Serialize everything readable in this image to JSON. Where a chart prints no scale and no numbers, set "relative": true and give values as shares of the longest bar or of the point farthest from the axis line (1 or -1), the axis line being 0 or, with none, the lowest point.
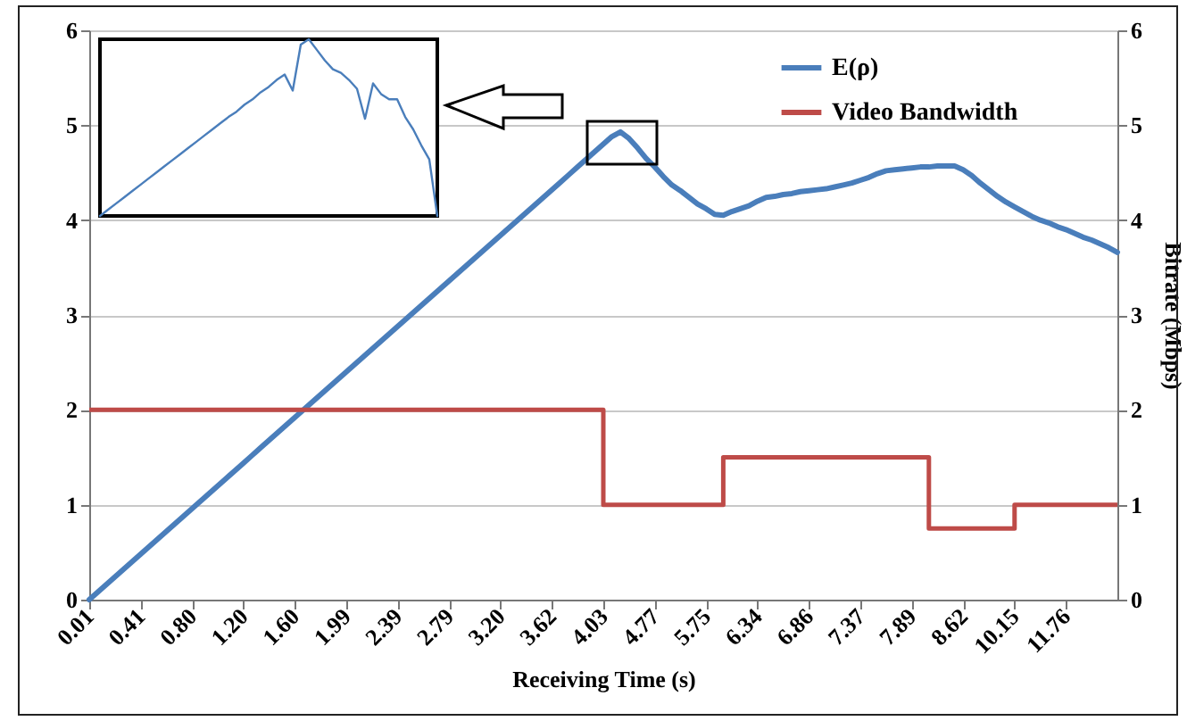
{
  "chart_data": [
    {
      "type": "line",
      "xlabel": "Receiving Time (s)",
      "y2label": "Bitrate (Mbps)",
      "categories": [
        "0.01",
        null,
        null,
        null,
        null,
        null,
        "0.41",
        null,
        null,
        null,
        null,
        null,
        "0.80",
        null,
        null,
        null,
        null,
        null,
        "1.20",
        null,
        null,
        null,
        null,
        null,
        "1.60",
        null,
        null,
        null,
        null,
        null,
        "1.99",
        null,
        null,
        null,
        null,
        null,
        "2.39",
        null,
        null,
        null,
        null,
        null,
        "2.79",
        null,
        null,
        null,
        null,
        null,
        "3.20",
        null,
        null,
        null,
        null,
        null,
        "3.62",
        null,
        null,
        null,
        null,
        null,
        "4.03",
        null,
        null,
        null,
        null,
        null,
        "4.77",
        null,
        null,
        null,
        null,
        null,
        "5.75",
        null,
        null,
        null,
        null,
        null,
        "6.34",
        null,
        null,
        null,
        null,
        null,
        "6.86",
        null,
        null,
        null,
        null,
        null,
        "7.37",
        null,
        null,
        null,
        null,
        null,
        "7.89",
        null,
        null,
        null,
        null,
        null,
        "8.62",
        null,
        null,
        null,
        null,
        null,
        "10.15",
        null,
        null,
        null,
        null,
        null,
        "11.76",
        null,
        null,
        null,
        null,
        null,
        null
      ],
      "series": [
        {
          "name": "E(ρ)",
          "color": "#4a7ebb",
          "values": [
            0,
            0.08,
            0.16,
            0.24,
            0.32,
            0.4,
            0.48,
            0.56,
            0.64,
            0.72,
            0.8,
            0.88,
            0.96,
            1.04,
            1.12,
            1.2,
            1.28,
            1.36,
            1.44,
            1.52,
            1.6,
            1.68,
            1.76,
            1.84,
            1.92,
            2,
            2.08,
            2.16,
            2.24,
            2.32,
            2.4,
            2.48,
            2.56,
            2.64,
            2.72,
            2.8,
            2.88,
            2.96,
            3.04,
            3.12,
            3.2,
            3.28,
            3.36,
            3.44,
            3.52,
            3.6,
            3.68,
            3.76,
            3.84,
            3.92,
            4,
            4.08,
            4.16,
            4.24,
            4.32,
            4.4,
            4.48,
            4.56,
            4.64,
            4.72,
            4.8,
            4.88,
            4.93,
            4.86,
            4.76,
            4.65,
            4.56,
            4.46,
            4.37,
            4.31,
            4.24,
            4.17,
            4.12,
            4.06,
            4.05,
            4.09,
            4.12,
            4.15,
            4.2,
            4.24,
            4.25,
            4.27,
            4.28,
            4.3,
            4.31,
            4.32,
            4.33,
            4.35,
            4.37,
            4.39,
            4.42,
            4.45,
            4.49,
            4.52,
            4.53,
            4.54,
            4.55,
            4.56,
            4.56,
            4.57,
            4.57,
            4.57,
            4.53,
            4.47,
            4.39,
            4.32,
            4.25,
            4.19,
            4.14,
            4.09,
            4.04,
            4,
            3.97,
            3.93,
            3.9,
            3.86,
            3.82,
            3.79,
            3.75,
            3.71,
            3.66
          ]
        },
        {
          "name": "Video Bandwidth",
          "color": "#be4b48",
          "type": "step",
          "axis": "y2",
          "values": [
            2,
            2,
            2,
            2,
            2,
            2,
            2,
            2,
            2,
            2,
            2,
            2,
            2,
            2,
            2,
            2,
            2,
            2,
            2,
            2,
            2,
            2,
            2,
            2,
            2,
            2,
            2,
            2,
            2,
            2,
            2,
            2,
            2,
            2,
            2,
            2,
            2,
            2,
            2,
            2,
            2,
            2,
            2,
            2,
            2,
            2,
            2,
            2,
            2,
            2,
            2,
            2,
            2,
            2,
            2,
            2,
            2,
            2,
            2,
            2,
            1,
            1,
            1,
            1,
            1,
            1,
            1,
            1,
            1,
            1,
            1,
            1,
            1,
            1,
            1.5,
            1.5,
            1.5,
            1.5,
            1.5,
            1.5,
            1.5,
            1.5,
            1.5,
            1.5,
            1.5,
            1.5,
            1.5,
            1.5,
            1.5,
            1.5,
            1.5,
            1.5,
            1.5,
            1.5,
            1.5,
            1.5,
            1.5,
            1.5,
            0.75,
            0.75,
            0.75,
            0.75,
            0.75,
            0.75,
            0.75,
            0.75,
            0.75,
            0.75,
            1,
            1,
            1,
            1,
            1,
            1,
            1,
            1,
            1,
            1,
            1,
            1,
            1
          ]
        }
      ],
      "ylim": [
        0,
        6
      ],
      "yticks": [
        0,
        1,
        2,
        3,
        4,
        5,
        6
      ],
      "y2lim": [
        0,
        6
      ],
      "y2ticks": [
        0,
        1,
        2,
        3,
        4,
        5,
        6
      ],
      "grid": "y",
      "legend": "top right"
    },
    {
      "type": "line",
      "relative": true,
      "categories": [
        null,
        null,
        null,
        null,
        null,
        null,
        null,
        null,
        null,
        null,
        null,
        null,
        null,
        null,
        null,
        null,
        null,
        null,
        null,
        null,
        null,
        null,
        null,
        null,
        null,
        null,
        null,
        null,
        null,
        null,
        null,
        null,
        null,
        null,
        null,
        null,
        null,
        null,
        null,
        null,
        null,
        null,
        null
      ],
      "series": [
        {
          "color": "#4a7ebb",
          "values": [
            0,
            0.035,
            0.07,
            0.105,
            0.14,
            0.175,
            0.21,
            0.245,
            0.28,
            0.315,
            0.35,
            0.385,
            0.42,
            0.455,
            0.49,
            0.525,
            0.56,
            0.59,
            0.63,
            0.66,
            0.7,
            0.73,
            0.77,
            0.8,
            0.71,
            0.97,
            1,
            0.94,
            0.88,
            0.83,
            0.81,
            0.77,
            0.72,
            0.55,
            0.75,
            0.69,
            0.66,
            0.66,
            0.56,
            0.49,
            0.4,
            0.32,
            0
          ]
        }
      ]
    }
  ]
}
